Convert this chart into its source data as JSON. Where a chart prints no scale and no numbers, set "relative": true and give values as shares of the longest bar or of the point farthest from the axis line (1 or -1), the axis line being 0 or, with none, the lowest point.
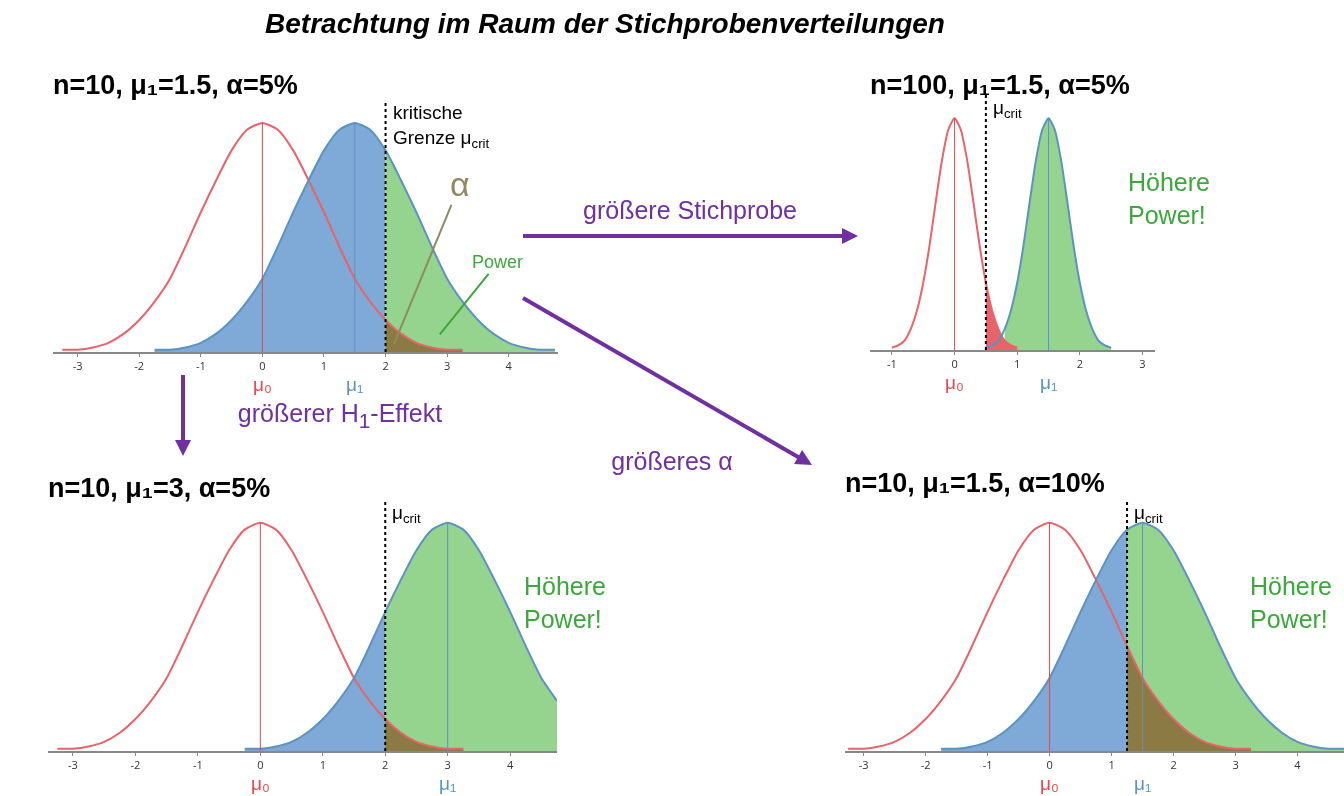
{
  "chart_data": [
    {
      "type": "area",
      "title": "Betrachtung im Raum der Stichprobenverteilungen",
      "subtitle": "n=10, μ₁=1.5, α=5%",
      "relative": true,
      "tick_labels": "x",
      "xlim": [
        -3.4,
        4.8
      ],
      "xticks": [
        -3,
        -2,
        -1,
        0,
        1,
        2,
        3,
        4
      ],
      "series": [
        {
          "type": "area",
          "color": "#7fa9d6",
          "x": [
            -1.75,
            -1.5,
            -1.25,
            -1,
            -0.75,
            -0.5,
            -0.25,
            0,
            0.25,
            0.5,
            0.75,
            1,
            1.25,
            1.5,
            1.75,
            2
          ],
          "values": [
            0.01,
            0.01,
            0.02,
            0.04,
            0.08,
            0.14,
            0.22,
            0.32,
            0.46,
            0.61,
            0.75,
            0.88,
            0.97,
            1,
            0.97,
            0.88
          ]
        },
        {
          "type": "area",
          "color": "#94d48e",
          "x": [
            2,
            2.25,
            2.5,
            2.75,
            3,
            3.25,
            3.5,
            3.75,
            4,
            4.25,
            4.5,
            4.75
          ],
          "values": [
            0.88,
            0.75,
            0.61,
            0.46,
            0.32,
            0.22,
            0.14,
            0.08,
            0.04,
            0.02,
            0.01,
            0.01
          ]
        },
        {
          "type": "area",
          "color": "#8c7a45",
          "x": [
            2,
            2.25,
            2.5,
            2.75,
            3,
            3.25
          ],
          "values": [
            0.14,
            0.08,
            0.04,
            0.02,
            0.01,
            0.01
          ]
        },
        {
          "type": "line",
          "color": "#e8636a",
          "x": [
            -3.25,
            -3,
            -2.75,
            -2.5,
            -2.25,
            -2,
            -1.75,
            -1.5,
            -1.25,
            -1,
            -0.75,
            -0.5,
            -0.25,
            0,
            0.25,
            0.5,
            0.75,
            1,
            1.25,
            1.5,
            1.75,
            2,
            2.25,
            2.5,
            2.75,
            3,
            3.25
          ],
          "values": [
            0.01,
            0.01,
            0.02,
            0.04,
            0.08,
            0.14,
            0.22,
            0.32,
            0.46,
            0.61,
            0.75,
            0.88,
            0.97,
            1,
            0.97,
            0.88,
            0.75,
            0.61,
            0.46,
            0.32,
            0.22,
            0.14,
            0.08,
            0.04,
            0.02,
            0.01,
            0.01
          ]
        },
        {
          "type": "line",
          "color": "#5b93c2",
          "x": [
            -1.75,
            -1.5,
            -1.25,
            -1,
            -0.75,
            -0.5,
            -0.25,
            0,
            0.25,
            0.5,
            0.75,
            1,
            1.25,
            1.5,
            1.75,
            2,
            2.25,
            2.5,
            2.75,
            3,
            3.25,
            3.5,
            3.75,
            4,
            4.25,
            4.5,
            4.75
          ],
          "values": [
            0.01,
            0.01,
            0.02,
            0.04,
            0.08,
            0.14,
            0.22,
            0.32,
            0.46,
            0.61,
            0.75,
            0.88,
            0.97,
            1,
            0.97,
            0.88,
            0.75,
            0.61,
            0.46,
            0.32,
            0.22,
            0.14,
            0.08,
            0.04,
            0.02,
            0.01,
            0.01
          ]
        }
      ],
      "ref_lines": [
        {
          "axis": "x",
          "value": 0,
          "label": "μ₀",
          "color": "#e8474c",
          "line_style": "solid"
        },
        {
          "axis": "x",
          "value": 1.5,
          "label": "μ₁",
          "color": "#5b93c2",
          "line_style": "solid"
        },
        {
          "axis": "x",
          "value": 2,
          "label": "kritische\nGrenze μ$_{crit}$",
          "color": "#000000",
          "line_style": "dotted"
        }
      ],
      "annotations": [
        "α",
        "Power",
        "größere Stichprobe",
        "größerer H$_{1}$-Effekt",
        "größeres α"
      ]
    },
    {
      "type": "area",
      "title": "n=100, μ₁=1.5, α=5%",
      "relative": true,
      "tick_labels": "x",
      "xlim": [
        -1.35,
        3.2
      ],
      "xticks": [
        -1,
        0,
        1,
        2,
        3
      ],
      "series": [
        {
          "type": "area",
          "color": "#94d48e",
          "x": [
            0.8,
            0.9,
            1,
            1.1,
            1.2,
            1.3,
            1.4,
            1.5,
            1.6,
            1.7,
            1.8,
            1.9,
            2,
            2.1,
            2.2,
            2.3,
            2.4,
            2.5
          ],
          "values": [
            0.09,
            0.17,
            0.29,
            0.45,
            0.64,
            0.82,
            0.95,
            1,
            0.95,
            0.82,
            0.64,
            0.45,
            0.29,
            0.17,
            0.09,
            0.04,
            0.02,
            0.01
          ]
        },
        {
          "type": "area",
          "color": "#e8636a",
          "x": [
            0.5,
            0.6,
            0.7,
            0.8,
            0.9,
            1
          ],
          "values": [
            0.29,
            0.17,
            0.09,
            0.04,
            0.02,
            0.01
          ]
        },
        {
          "type": "line",
          "color": "#e8636a",
          "x": [
            -1,
            -0.9,
            -0.8,
            -0.7,
            -0.6,
            -0.5,
            -0.4,
            -0.3,
            -0.2,
            -0.1,
            0,
            0.1,
            0.2,
            0.3,
            0.4,
            0.5,
            0.6,
            0.7,
            0.8,
            0.9,
            1
          ],
          "values": [
            0.01,
            0.02,
            0.04,
            0.09,
            0.17,
            0.29,
            0.45,
            0.64,
            0.82,
            0.95,
            1,
            0.95,
            0.82,
            0.64,
            0.45,
            0.29,
            0.17,
            0.09,
            0.04,
            0.02,
            0.01
          ]
        },
        {
          "type": "line",
          "color": "#5b93c2",
          "x": [
            0.5,
            0.6,
            0.7,
            0.8,
            0.9,
            1,
            1.1,
            1.2,
            1.3,
            1.4,
            1.5,
            1.6,
            1.7,
            1.8,
            1.9,
            2,
            2.1,
            2.2,
            2.3,
            2.4,
            2.5
          ],
          "values": [
            0.01,
            0.02,
            0.04,
            0.09,
            0.17,
            0.29,
            0.45,
            0.64,
            0.82,
            0.95,
            1,
            0.95,
            0.82,
            0.64,
            0.45,
            0.29,
            0.17,
            0.09,
            0.04,
            0.02,
            0.01
          ]
        }
      ],
      "ref_lines": [
        {
          "axis": "x",
          "value": 0,
          "label": "μ₀",
          "color": "#e8474c",
          "line_style": "solid"
        },
        {
          "axis": "x",
          "value": 1.5,
          "label": "μ₁",
          "color": "#5b93c2",
          "line_style": "solid"
        },
        {
          "axis": "x",
          "value": 0.5,
          "label": "μ$_{crit}$",
          "color": "#000000",
          "line_style": "dotted"
        }
      ],
      "annotations": [
        "Höhere\nPower!"
      ]
    },
    {
      "type": "area",
      "title": "n=10, μ₁=3, α=5%",
      "relative": true,
      "tick_labels": "x",
      "xlim": [
        -3.4,
        4.75
      ],
      "xticks": [
        -3,
        -2,
        -1,
        0,
        1,
        2,
        3,
        4
      ],
      "series": [
        {
          "type": "area",
          "color": "#7fa9d6",
          "x": [
            -0.25,
            0,
            0.25,
            0.5,
            0.75,
            1,
            1.25,
            1.5,
            1.75,
            2
          ],
          "values": [
            0.01,
            0.01,
            0.02,
            0.04,
            0.08,
            0.14,
            0.22,
            0.32,
            0.46,
            0.61
          ]
        },
        {
          "type": "area",
          "color": "#94d48e",
          "x": [
            2,
            2.25,
            2.5,
            2.75,
            3,
            3.25,
            3.5,
            3.75,
            4,
            4.25,
            4.5,
            4.75
          ],
          "values": [
            0.61,
            0.75,
            0.88,
            0.97,
            1,
            0.97,
            0.88,
            0.75,
            0.61,
            0.46,
            0.32,
            0.22
          ]
        },
        {
          "type": "area",
          "color": "#8c7a45",
          "x": [
            2,
            2.25,
            2.5,
            2.75,
            3,
            3.25
          ],
          "values": [
            0.14,
            0.08,
            0.04,
            0.02,
            0.01,
            0.01
          ]
        },
        {
          "type": "line",
          "color": "#e8636a",
          "x": [
            -3.25,
            -3,
            -2.75,
            -2.5,
            -2.25,
            -2,
            -1.75,
            -1.5,
            -1.25,
            -1,
            -0.75,
            -0.5,
            -0.25,
            0,
            0.25,
            0.5,
            0.75,
            1,
            1.25,
            1.5,
            1.75,
            2,
            2.25,
            2.5,
            2.75,
            3,
            3.25
          ],
          "values": [
            0.01,
            0.01,
            0.02,
            0.04,
            0.08,
            0.14,
            0.22,
            0.32,
            0.46,
            0.61,
            0.75,
            0.88,
            0.97,
            1,
            0.97,
            0.88,
            0.75,
            0.61,
            0.46,
            0.32,
            0.22,
            0.14,
            0.08,
            0.04,
            0.02,
            0.01,
            0.01
          ]
        },
        {
          "type": "line",
          "color": "#5b93c2",
          "x": [
            -0.25,
            0,
            0.25,
            0.5,
            0.75,
            1,
            1.25,
            1.5,
            1.75,
            2,
            2.25,
            2.5,
            2.75,
            3,
            3.25,
            3.5,
            3.75,
            4,
            4.25,
            4.5,
            4.75
          ],
          "values": [
            0.01,
            0.01,
            0.02,
            0.04,
            0.08,
            0.14,
            0.22,
            0.32,
            0.46,
            0.61,
            0.75,
            0.88,
            0.97,
            1,
            0.97,
            0.88,
            0.75,
            0.61,
            0.46,
            0.32,
            0.22
          ]
        }
      ],
      "ref_lines": [
        {
          "axis": "x",
          "value": 0,
          "label": "μ₀",
          "color": "#e8474c",
          "line_style": "solid"
        },
        {
          "axis": "x",
          "value": 3,
          "label": "μ₁",
          "color": "#5b93c2",
          "line_style": "solid"
        },
        {
          "axis": "x",
          "value": 2,
          "label": "μ$_{crit}$",
          "color": "#000000",
          "line_style": "dotted"
        }
      ],
      "annotations": [
        "Höhere\nPower!"
      ]
    },
    {
      "type": "area",
      "title": "n=10, μ₁=1.5, α=10%",
      "relative": true,
      "tick_labels": "x",
      "xlim": [
        -3.3,
        4.75
      ],
      "xticks": [
        -3,
        -2,
        -1,
        0,
        1,
        2,
        3,
        4
      ],
      "series": [
        {
          "type": "area",
          "color": "#7fa9d6",
          "x": [
            -1.75,
            -1.5,
            -1.25,
            -1,
            -0.75,
            -0.5,
            -0.25,
            0,
            0.25,
            0.5,
            0.75,
            1,
            1.25
          ],
          "values": [
            0.01,
            0.01,
            0.02,
            0.04,
            0.08,
            0.14,
            0.22,
            0.32,
            0.46,
            0.61,
            0.75,
            0.88,
            0.97
          ]
        },
        {
          "type": "area",
          "color": "#94d48e",
          "x": [
            1.25,
            1.5,
            1.75,
            2,
            2.25,
            2.5,
            2.75,
            3,
            3.25,
            3.5,
            3.75,
            4,
            4.25,
            4.5,
            4.75
          ],
          "values": [
            0.97,
            1,
            0.97,
            0.88,
            0.75,
            0.61,
            0.46,
            0.32,
            0.22,
            0.14,
            0.08,
            0.04,
            0.02,
            0.01,
            0.01
          ]
        },
        {
          "type": "area",
          "color": "#8c7a45",
          "x": [
            1.25,
            1.5,
            1.75,
            2,
            2.25,
            2.5,
            2.75,
            3,
            3.25
          ],
          "values": [
            0.46,
            0.32,
            0.22,
            0.14,
            0.08,
            0.04,
            0.02,
            0.01,
            0.01
          ]
        },
        {
          "type": "line",
          "color": "#e8636a",
          "x": [
            -3.25,
            -3,
            -2.75,
            -2.5,
            -2.25,
            -2,
            -1.75,
            -1.5,
            -1.25,
            -1,
            -0.75,
            -0.5,
            -0.25,
            0,
            0.25,
            0.5,
            0.75,
            1,
            1.25,
            1.5,
            1.75,
            2,
            2.25,
            2.5,
            2.75,
            3,
            3.25
          ],
          "values": [
            0.01,
            0.01,
            0.02,
            0.04,
            0.08,
            0.14,
            0.22,
            0.32,
            0.46,
            0.61,
            0.75,
            0.88,
            0.97,
            1,
            0.97,
            0.88,
            0.75,
            0.61,
            0.46,
            0.32,
            0.22,
            0.14,
            0.08,
            0.04,
            0.02,
            0.01,
            0.01
          ]
        },
        {
          "type": "line",
          "color": "#5b93c2",
          "x": [
            -1.75,
            -1.5,
            -1.25,
            -1,
            -0.75,
            -0.5,
            -0.25,
            0,
            0.25,
            0.5,
            0.75,
            1,
            1.25,
            1.5,
            1.75,
            2,
            2.25,
            2.5,
            2.75,
            3,
            3.25,
            3.5,
            3.75,
            4,
            4.25,
            4.5,
            4.75
          ],
          "values": [
            0.01,
            0.01,
            0.02,
            0.04,
            0.08,
            0.14,
            0.22,
            0.32,
            0.46,
            0.61,
            0.75,
            0.88,
            0.97,
            1,
            0.97,
            0.88,
            0.75,
            0.61,
            0.46,
            0.32,
            0.22,
            0.14,
            0.08,
            0.04,
            0.02,
            0.01,
            0.01
          ]
        }
      ],
      "ref_lines": [
        {
          "axis": "x",
          "value": 0,
          "label": "μ₀",
          "color": "#e8474c",
          "line_style": "solid"
        },
        {
          "axis": "x",
          "value": 1.5,
          "label": "μ₁",
          "color": "#5b93c2",
          "line_style": "solid"
        },
        {
          "axis": "x",
          "value": 1.25,
          "label": "μ$_{crit}$",
          "color": "#000000",
          "line_style": "dotted"
        }
      ],
      "annotations": [
        "Höhere\nPower!"
      ]
    }
  ]
}
